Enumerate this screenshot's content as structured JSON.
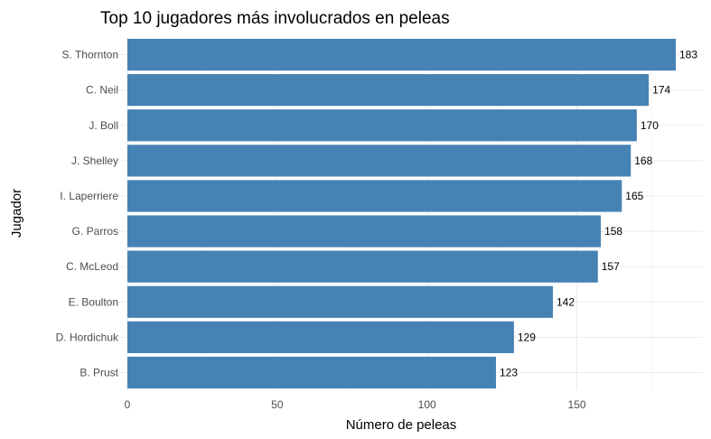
{
  "chart_data": {
    "type": "bar",
    "orientation": "horizontal",
    "title": "Top 10 jugadores más involucrados en peleas",
    "xlabel": "Número de peleas",
    "ylabel": "Jugador",
    "categories": [
      "S. Thornton",
      "C. Neil",
      "J. Boll",
      "J. Shelley",
      "I. Laperriere",
      "G. Parros",
      "C. McLeod",
      "E. Boulton",
      "D. Hordichuk",
      "B. Prust"
    ],
    "values": [
      183,
      174,
      170,
      168,
      165,
      158,
      157,
      142,
      129,
      123
    ],
    "xlim": [
      0,
      192
    ],
    "x_ticks": [
      0,
      50,
      100,
      150
    ],
    "grid": true,
    "legend": "none",
    "bar_color": "#4682B4"
  }
}
